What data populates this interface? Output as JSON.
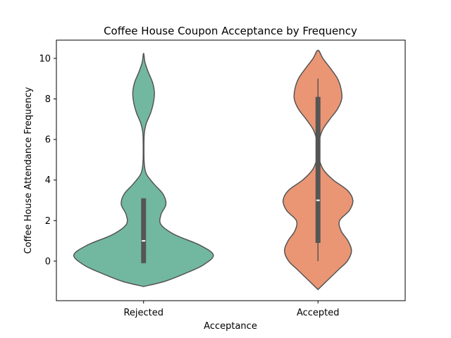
{
  "chart_data": {
    "type": "violin",
    "title": "Coffee House Coupon Acceptance by Frequency",
    "xlabel": "Acceptance",
    "ylabel": "Coffee House Attendance Frequency",
    "categories": [
      "Rejected",
      "Accepted"
    ],
    "ylim": [
      -1.95,
      10.9
    ],
    "yticks": [
      0,
      2,
      4,
      6,
      8,
      10
    ],
    "grid": false,
    "series": [
      {
        "category": "Rejected",
        "color": "#72b8a1",
        "edge_color": "#555555",
        "density_range": [
          -1.25,
          10.25
        ],
        "density_profile": [
          [
            -1.25,
            0.0
          ],
          [
            -1.0,
            0.3
          ],
          [
            -0.6,
            0.6
          ],
          [
            -0.2,
            0.85
          ],
          [
            0.3,
            1.0
          ],
          [
            0.8,
            0.8
          ],
          [
            1.3,
            0.45
          ],
          [
            1.8,
            0.25
          ],
          [
            2.3,
            0.25
          ],
          [
            2.8,
            0.32
          ],
          [
            3.3,
            0.28
          ],
          [
            3.8,
            0.15
          ],
          [
            4.3,
            0.04
          ],
          [
            4.8,
            0.01
          ],
          [
            5.5,
            0.005
          ],
          [
            6.3,
            0.01
          ],
          [
            6.8,
            0.04
          ],
          [
            7.3,
            0.1
          ],
          [
            7.8,
            0.14
          ],
          [
            8.3,
            0.155
          ],
          [
            8.8,
            0.13
          ],
          [
            9.3,
            0.07
          ],
          [
            9.8,
            0.02
          ],
          [
            10.25,
            0.0
          ]
        ],
        "quartiles": [
          -0.1,
          3.1
        ],
        "median": 1,
        "whiskers": [
          -0.1,
          3.1
        ]
      },
      {
        "category": "Accepted",
        "color": "#ea9674",
        "edge_color": "#555555",
        "density_range": [
          -1.4,
          10.4
        ],
        "density_profile": [
          [
            -1.4,
            0.0
          ],
          [
            -0.9,
            0.15
          ],
          [
            -0.4,
            0.3
          ],
          [
            0.0,
            0.42
          ],
          [
            0.5,
            0.48
          ],
          [
            1.0,
            0.43
          ],
          [
            1.5,
            0.33
          ],
          [
            2.0,
            0.31
          ],
          [
            2.5,
            0.45
          ],
          [
            3.0,
            0.5
          ],
          [
            3.5,
            0.42
          ],
          [
            4.0,
            0.22
          ],
          [
            4.5,
            0.08
          ],
          [
            5.0,
            0.02
          ],
          [
            5.5,
            0.005
          ],
          [
            6.0,
            0.02
          ],
          [
            6.5,
            0.07
          ],
          [
            7.0,
            0.17
          ],
          [
            7.5,
            0.28
          ],
          [
            8.0,
            0.34
          ],
          [
            8.5,
            0.33
          ],
          [
            9.0,
            0.28
          ],
          [
            9.5,
            0.18
          ],
          [
            10.0,
            0.07
          ],
          [
            10.4,
            0.0
          ]
        ],
        "quartiles": [
          0.9,
          8.1
        ],
        "median": 3,
        "whiskers": [
          0.0,
          9.0
        ]
      }
    ]
  }
}
